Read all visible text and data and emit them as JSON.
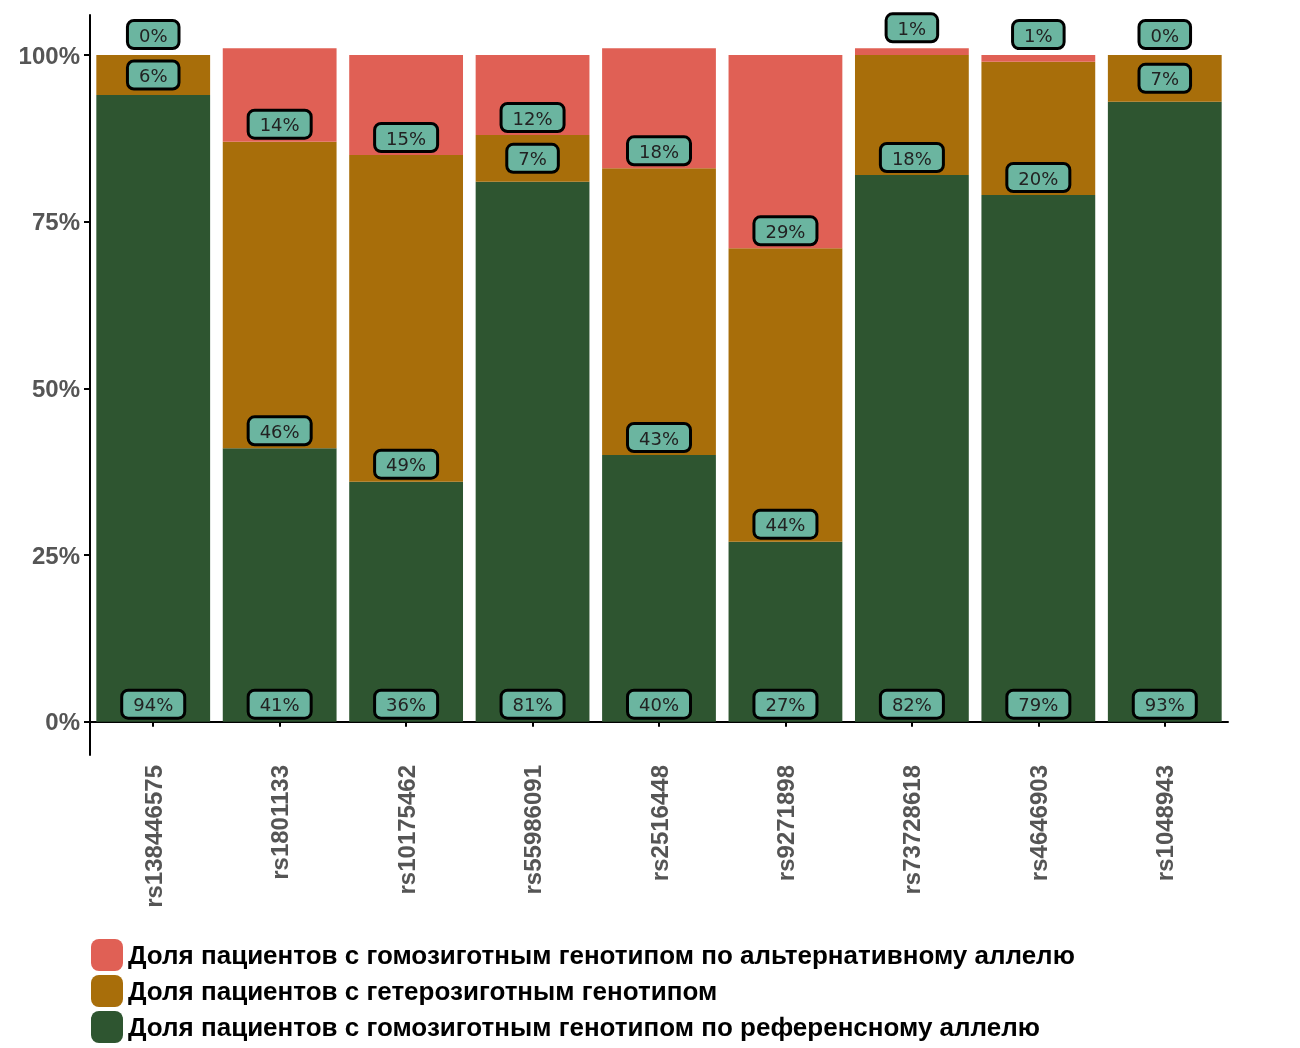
{
  "chart_data": {
    "type": "bar",
    "stacked": true,
    "categories": [
      "rs138446575",
      "rs1801133",
      "rs10175462",
      "rs55986091",
      "rs2516448",
      "rs9271898",
      "rs73728618",
      "rs4646903",
      "rs1048943"
    ],
    "series": [
      {
        "name": "Доля пациентов с гомозиготным генотипом по референсному аллелю",
        "color": "#2e5530",
        "values": [
          94,
          41,
          36,
          81,
          40,
          27,
          82,
          79,
          93
        ],
        "value_labels": [
          "94%",
          "41%",
          "36%",
          "81%",
          "40%",
          "27%",
          "82%",
          "79%",
          "93%"
        ]
      },
      {
        "name": "Доля пациентов с гетерозиготным генотипом",
        "color": "#a86e0a",
        "values": [
          6,
          46,
          49,
          7,
          43,
          44,
          18,
          20,
          7
        ],
        "value_labels": [
          "6%",
          "46%",
          "49%",
          "7%",
          "43%",
          "44%",
          "18%",
          "20%",
          "7%"
        ]
      },
      {
        "name": "Доля пациентов с гомозиготным генотипом по альтернативному аллелю",
        "color": "#e06055",
        "values": [
          0,
          14,
          15,
          12,
          18,
          29,
          1,
          1,
          0
        ],
        "value_labels": [
          "0%",
          "14%",
          "15%",
          "12%",
          "18%",
          "29%",
          "1%",
          "1%",
          "0%"
        ]
      }
    ],
    "ylim": [
      -5,
      106
    ],
    "yticks": [
      {
        "value": 0,
        "label": "0%"
      },
      {
        "value": 25,
        "label": "25%"
      },
      {
        "value": 50,
        "label": "50%"
      },
      {
        "value": 75,
        "label": "75%"
      },
      {
        "value": 100,
        "label": "100%"
      }
    ],
    "grid": false,
    "legend": "bottom",
    "data_labels": true
  }
}
